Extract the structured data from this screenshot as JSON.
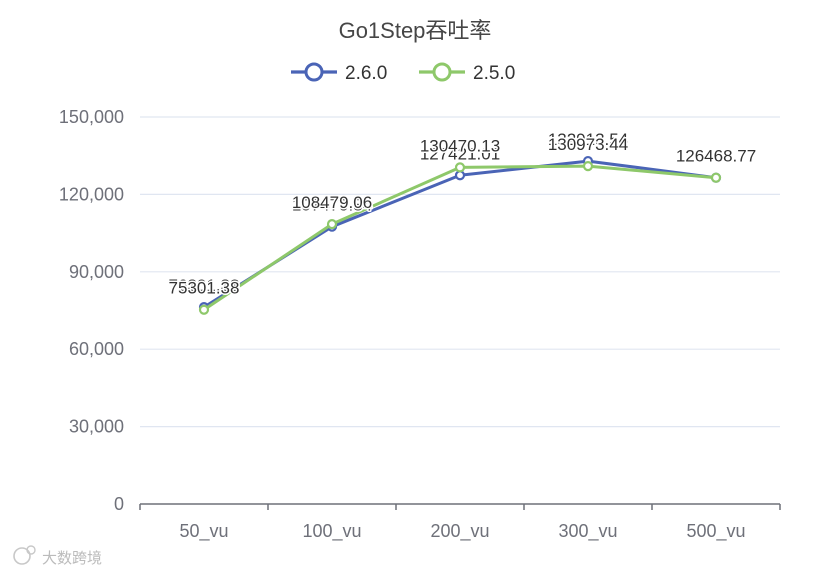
{
  "chart_data": {
    "type": "line",
    "title": "Go1Step吞吐率",
    "categories": [
      "50_vu",
      "100_vu",
      "200_vu",
      "300_vu",
      "500_vu"
    ],
    "ylim": [
      0,
      150000
    ],
    "yticks": [
      0,
      30000,
      60000,
      90000,
      120000,
      150000
    ],
    "ytick_labels": [
      "0",
      "30,000",
      "60,000",
      "90,000",
      "120,000",
      "150,000"
    ],
    "legend_position": "top-center",
    "grid": true,
    "series": [
      {
        "name": "2.6.0",
        "color": "#4a64b6",
        "values": [
          76301.38,
          107479.84,
          127421.01,
          132913.54,
          126468.77
        ],
        "labels": [
          "76301.38",
          "107479.84",
          "127421.01",
          "132913.54",
          "126468.77"
        ]
      },
      {
        "name": "2.5.0",
        "color": "#8ec86a",
        "values": [
          75301.38,
          108479.06,
          130470.13,
          130973.44,
          126468.77
        ],
        "labels": [
          "75301.38",
          "108479.06",
          "130470.13",
          "130973.44",
          "126468.77"
        ]
      }
    ]
  },
  "watermark": {
    "text": "大数跨境",
    "icon": "logo-icon"
  }
}
